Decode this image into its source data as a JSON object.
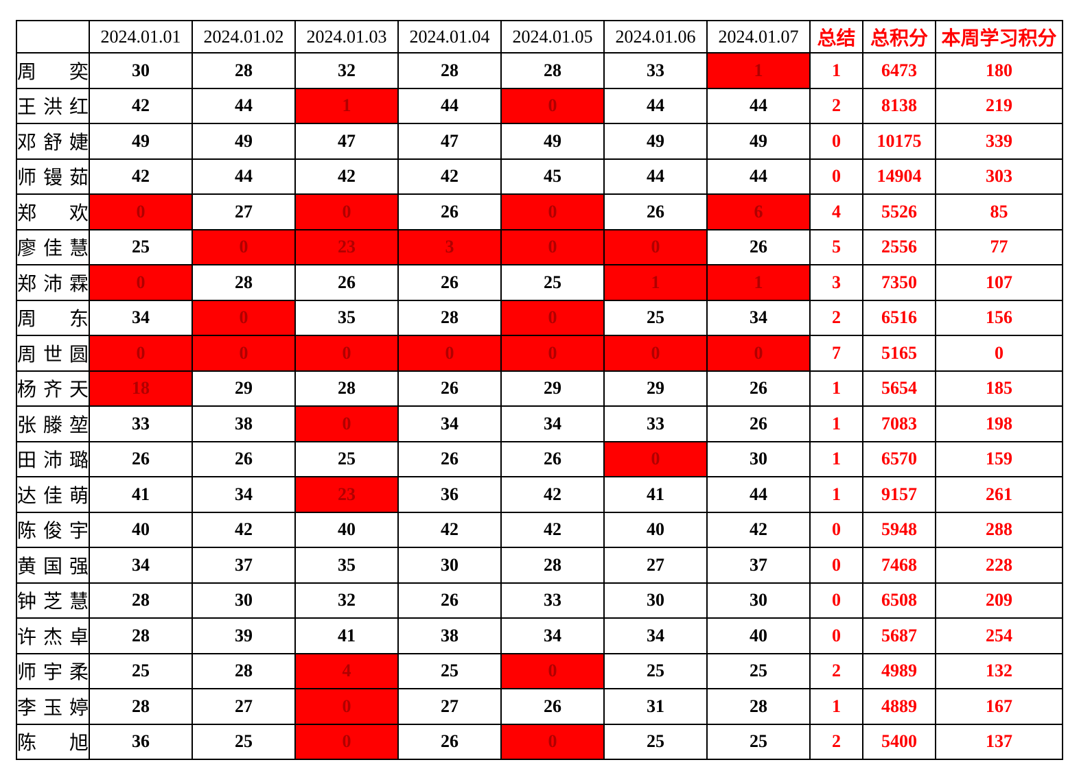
{
  "table": {
    "corner_label": "",
    "date_headers": [
      "2024.01.01",
      "2024.01.02",
      "2024.01.03",
      "2024.01.04",
      "2024.01.05",
      "2024.01.06",
      "2024.01.07"
    ],
    "summary_headers": {
      "summary": "总结",
      "total": "总积分",
      "week": "本周学习积分"
    },
    "rows": [
      {
        "name": "周奕",
        "days": [
          {
            "v": "30",
            "red": false
          },
          {
            "v": "28",
            "red": false
          },
          {
            "v": "32",
            "red": false
          },
          {
            "v": "28",
            "red": false
          },
          {
            "v": "28",
            "red": false
          },
          {
            "v": "33",
            "red": false
          },
          {
            "v": "1",
            "red": true
          }
        ],
        "summary": "1",
        "total": "6473",
        "week": "180"
      },
      {
        "name": "王洪红",
        "days": [
          {
            "v": "42",
            "red": false
          },
          {
            "v": "44",
            "red": false
          },
          {
            "v": "1",
            "red": true
          },
          {
            "v": "44",
            "red": false
          },
          {
            "v": "0",
            "red": true
          },
          {
            "v": "44",
            "red": false
          },
          {
            "v": "44",
            "red": false
          }
        ],
        "summary": "2",
        "total": "8138",
        "week": "219"
      },
      {
        "name": "邓舒婕",
        "days": [
          {
            "v": "49",
            "red": false
          },
          {
            "v": "49",
            "red": false
          },
          {
            "v": "47",
            "red": false
          },
          {
            "v": "47",
            "red": false
          },
          {
            "v": "49",
            "red": false
          },
          {
            "v": "49",
            "red": false
          },
          {
            "v": "49",
            "red": false
          }
        ],
        "summary": "0",
        "total": "10175",
        "week": "339"
      },
      {
        "name": "师镘茹",
        "days": [
          {
            "v": "42",
            "red": false
          },
          {
            "v": "44",
            "red": false
          },
          {
            "v": "42",
            "red": false
          },
          {
            "v": "42",
            "red": false
          },
          {
            "v": "45",
            "red": false
          },
          {
            "v": "44",
            "red": false
          },
          {
            "v": "44",
            "red": false
          }
        ],
        "summary": "0",
        "total": "14904",
        "week": "303"
      },
      {
        "name": "郑欢",
        "days": [
          {
            "v": "0",
            "red": true
          },
          {
            "v": "27",
            "red": false
          },
          {
            "v": "0",
            "red": true
          },
          {
            "v": "26",
            "red": false
          },
          {
            "v": "0",
            "red": true
          },
          {
            "v": "26",
            "red": false
          },
          {
            "v": "6",
            "red": true
          }
        ],
        "summary": "4",
        "total": "5526",
        "week": "85"
      },
      {
        "name": "廖佳慧",
        "days": [
          {
            "v": "25",
            "red": false
          },
          {
            "v": "0",
            "red": true
          },
          {
            "v": "23",
            "red": true
          },
          {
            "v": "3",
            "red": true
          },
          {
            "v": "0",
            "red": true
          },
          {
            "v": "0",
            "red": true
          },
          {
            "v": "26",
            "red": false
          }
        ],
        "summary": "5",
        "total": "2556",
        "week": "77"
      },
      {
        "name": "郑沛霖",
        "days": [
          {
            "v": "0",
            "red": true
          },
          {
            "v": "28",
            "red": false
          },
          {
            "v": "26",
            "red": false
          },
          {
            "v": "26",
            "red": false
          },
          {
            "v": "25",
            "red": false
          },
          {
            "v": "1",
            "red": true
          },
          {
            "v": "1",
            "red": true
          }
        ],
        "summary": "3",
        "total": "7350",
        "week": "107"
      },
      {
        "name": "周东",
        "days": [
          {
            "v": "34",
            "red": false
          },
          {
            "v": "0",
            "red": true
          },
          {
            "v": "35",
            "red": false
          },
          {
            "v": "28",
            "red": false
          },
          {
            "v": "0",
            "red": true
          },
          {
            "v": "25",
            "red": false
          },
          {
            "v": "34",
            "red": false
          }
        ],
        "summary": "2",
        "total": "6516",
        "week": "156"
      },
      {
        "name": "周世圆",
        "days": [
          {
            "v": "0",
            "red": true
          },
          {
            "v": "0",
            "red": true
          },
          {
            "v": "0",
            "red": true
          },
          {
            "v": "0",
            "red": true
          },
          {
            "v": "0",
            "red": true
          },
          {
            "v": "0",
            "red": true
          },
          {
            "v": "0",
            "red": true
          }
        ],
        "summary": "7",
        "total": "5165",
        "week": "0"
      },
      {
        "name": "杨齐天",
        "days": [
          {
            "v": "18",
            "red": true
          },
          {
            "v": "29",
            "red": false
          },
          {
            "v": "28",
            "red": false
          },
          {
            "v": "26",
            "red": false
          },
          {
            "v": "29",
            "red": false
          },
          {
            "v": "29",
            "red": false
          },
          {
            "v": "26",
            "red": false
          }
        ],
        "summary": "1",
        "total": "5654",
        "week": "185"
      },
      {
        "name": "张滕堃",
        "days": [
          {
            "v": "33",
            "red": false
          },
          {
            "v": "38",
            "red": false
          },
          {
            "v": "0",
            "red": true
          },
          {
            "v": "34",
            "red": false
          },
          {
            "v": "34",
            "red": false
          },
          {
            "v": "33",
            "red": false
          },
          {
            "v": "26",
            "red": false
          }
        ],
        "summary": "1",
        "total": "7083",
        "week": "198"
      },
      {
        "name": "田沛璐",
        "days": [
          {
            "v": "26",
            "red": false
          },
          {
            "v": "26",
            "red": false
          },
          {
            "v": "25",
            "red": false
          },
          {
            "v": "26",
            "red": false
          },
          {
            "v": "26",
            "red": false
          },
          {
            "v": "0",
            "red": true
          },
          {
            "v": "30",
            "red": false
          }
        ],
        "summary": "1",
        "total": "6570",
        "week": "159"
      },
      {
        "name": "达佳萌",
        "days": [
          {
            "v": "41",
            "red": false
          },
          {
            "v": "34",
            "red": false
          },
          {
            "v": "23",
            "red": true
          },
          {
            "v": "36",
            "red": false
          },
          {
            "v": "42",
            "red": false
          },
          {
            "v": "41",
            "red": false
          },
          {
            "v": "44",
            "red": false
          }
        ],
        "summary": "1",
        "total": "9157",
        "week": "261"
      },
      {
        "name": "陈俊宇",
        "days": [
          {
            "v": "40",
            "red": false
          },
          {
            "v": "42",
            "red": false
          },
          {
            "v": "40",
            "red": false
          },
          {
            "v": "42",
            "red": false
          },
          {
            "v": "42",
            "red": false
          },
          {
            "v": "40",
            "red": false
          },
          {
            "v": "42",
            "red": false
          }
        ],
        "summary": "0",
        "total": "5948",
        "week": "288"
      },
      {
        "name": "黄国强",
        "days": [
          {
            "v": "34",
            "red": false
          },
          {
            "v": "37",
            "red": false
          },
          {
            "v": "35",
            "red": false
          },
          {
            "v": "30",
            "red": false
          },
          {
            "v": "28",
            "red": false
          },
          {
            "v": "27",
            "red": false
          },
          {
            "v": "37",
            "red": false
          }
        ],
        "summary": "0",
        "total": "7468",
        "week": "228"
      },
      {
        "name": "钟芝慧",
        "days": [
          {
            "v": "28",
            "red": false
          },
          {
            "v": "30",
            "red": false
          },
          {
            "v": "32",
            "red": false
          },
          {
            "v": "26",
            "red": false
          },
          {
            "v": "33",
            "red": false
          },
          {
            "v": "30",
            "red": false
          },
          {
            "v": "30",
            "red": false
          }
        ],
        "summary": "0",
        "total": "6508",
        "week": "209"
      },
      {
        "name": "许杰卓",
        "days": [
          {
            "v": "28",
            "red": false
          },
          {
            "v": "39",
            "red": false
          },
          {
            "v": "41",
            "red": false
          },
          {
            "v": "38",
            "red": false
          },
          {
            "v": "34",
            "red": false
          },
          {
            "v": "34",
            "red": false
          },
          {
            "v": "40",
            "red": false
          }
        ],
        "summary": "0",
        "total": "5687",
        "week": "254"
      },
      {
        "name": "师宇柔",
        "days": [
          {
            "v": "25",
            "red": false
          },
          {
            "v": "28",
            "red": false
          },
          {
            "v": "4",
            "red": true
          },
          {
            "v": "25",
            "red": false
          },
          {
            "v": "0",
            "red": true
          },
          {
            "v": "25",
            "red": false
          },
          {
            "v": "25",
            "red": false
          }
        ],
        "summary": "2",
        "total": "4989",
        "week": "132"
      },
      {
        "name": "李玉婷",
        "days": [
          {
            "v": "28",
            "red": false
          },
          {
            "v": "27",
            "red": false
          },
          {
            "v": "0",
            "red": true
          },
          {
            "v": "27",
            "red": false
          },
          {
            "v": "26",
            "red": false
          },
          {
            "v": "31",
            "red": false
          },
          {
            "v": "28",
            "red": false
          }
        ],
        "summary": "1",
        "total": "4889",
        "week": "167"
      },
      {
        "name": "陈旭",
        "days": [
          {
            "v": "36",
            "red": false
          },
          {
            "v": "25",
            "red": false
          },
          {
            "v": "0",
            "red": true
          },
          {
            "v": "26",
            "red": false
          },
          {
            "v": "0",
            "red": true
          },
          {
            "v": "25",
            "red": false
          },
          {
            "v": "25",
            "red": false
          }
        ],
        "summary": "2",
        "total": "5400",
        "week": "137"
      }
    ]
  },
  "colors": {
    "highlight_fill": "#ff0000",
    "highlight_digit": "#b00000",
    "red_text": "#ff0000",
    "border": "#000000",
    "background": "#ffffff"
  }
}
